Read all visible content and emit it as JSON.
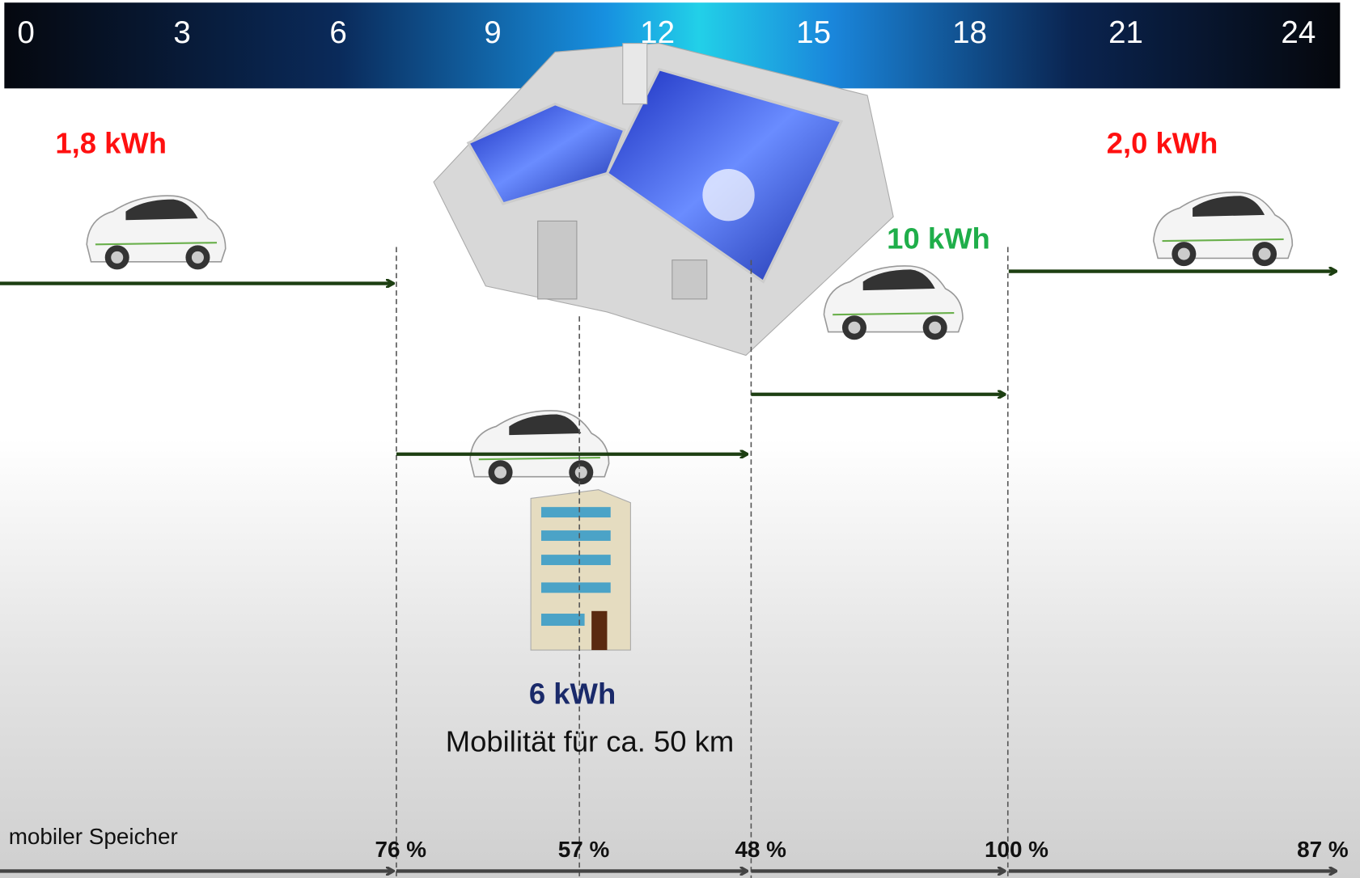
{
  "timeline": {
    "ticks": [
      0,
      3,
      6,
      9,
      12,
      15,
      18,
      21,
      24
    ]
  },
  "labels": {
    "energy_morning": "1,8 kWh",
    "energy_evening": "2,0 kWh",
    "energy_home": "10 kWh",
    "energy_work": "6 kWh",
    "mobility": "Mobilität für ca. 50 km"
  },
  "storage": {
    "title": "mobiler Speicher",
    "levels": [
      "76 %",
      "57 %",
      "48 %",
      "100 %",
      "87 %"
    ]
  }
}
